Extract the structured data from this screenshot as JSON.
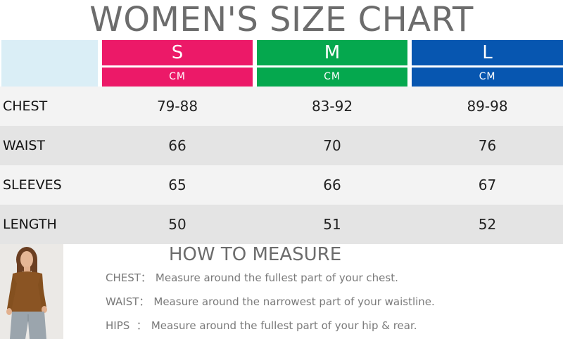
{
  "title": "WOMEN'S SIZE CHART",
  "sizes": [
    {
      "label": "S",
      "unit": "CM",
      "color": "#ec1968"
    },
    {
      "label": "M",
      "unit": "CM",
      "color": "#05a84e"
    },
    {
      "label": "L",
      "unit": "CM",
      "color": "#0756b0"
    }
  ],
  "corner_color": "#daeef6",
  "rows": [
    {
      "label": "CHEST",
      "values": [
        "79-88",
        "83-92",
        "89-98"
      ]
    },
    {
      "label": "WAIST",
      "values": [
        "66",
        "70",
        "76"
      ]
    },
    {
      "label": "SLEEVES",
      "values": [
        "65",
        "66",
        "67"
      ]
    },
    {
      "label": "LENGTH",
      "values": [
        "50",
        "51",
        "52"
      ]
    }
  ],
  "howto": {
    "title": "HOW TO MEASURE",
    "items": [
      {
        "key": "CHEST：",
        "text": "Measure around the fullest part of your chest."
      },
      {
        "key": "WAIST：",
        "text": "Measure around the narrowest part of your waistline."
      },
      {
        "key": "HIPS  ：",
        "text": "Measure around the fullest part of your hip & rear."
      }
    ]
  }
}
